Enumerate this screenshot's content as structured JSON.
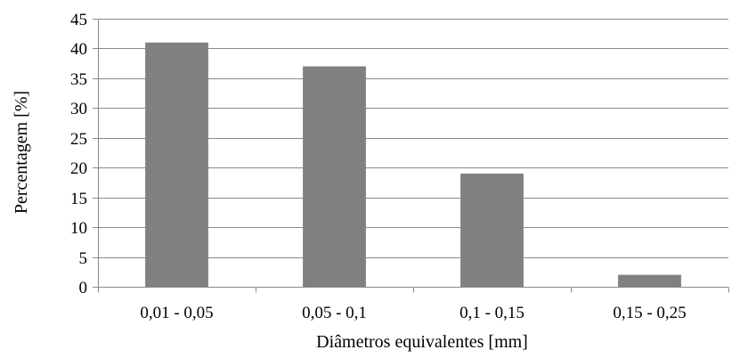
{
  "chart_data": {
    "type": "bar",
    "categories": [
      "0,01 - 0,05",
      "0,05 - 0,1",
      "0,1 - 0,15",
      "0,15 - 0,25"
    ],
    "values": [
      41,
      37,
      19,
      2
    ],
    "title": "",
    "xlabel": "Diâmetros equivalentes [mm]",
    "ylabel": "Percentagem [%]",
    "ylim": [
      0,
      45
    ],
    "yticks": [
      0,
      5,
      10,
      15,
      20,
      25,
      30,
      35,
      40,
      45
    ],
    "grid": true,
    "legend": "none",
    "bar_color": "#808080",
    "grid_color": "#898989",
    "axis_color": "#898989"
  }
}
